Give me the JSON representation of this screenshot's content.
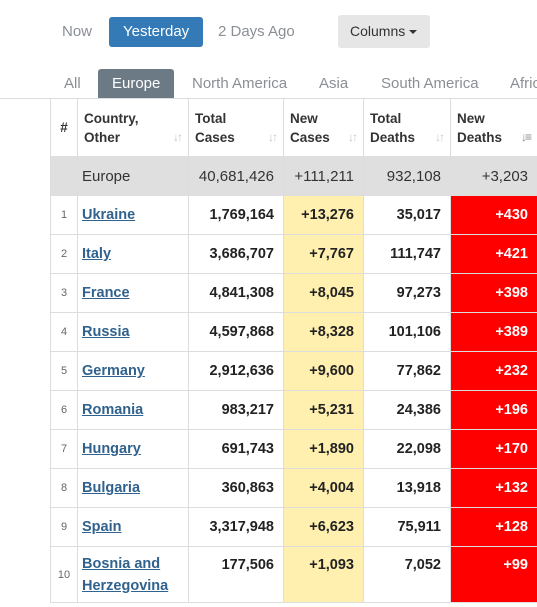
{
  "day_tabs": [
    "Now",
    "Yesterday",
    "2 Days Ago"
  ],
  "columns_button": "Columns",
  "region_tabs": [
    "All",
    "Europe",
    "North America",
    "Asia",
    "South America",
    "Afric"
  ],
  "headers": {
    "hash": "#",
    "country": [
      "Country,",
      "Other"
    ],
    "total_cases": [
      "Total",
      "Cases"
    ],
    "new_cases": [
      "New",
      "Cases"
    ],
    "total_deaths": [
      "Total",
      "Deaths"
    ],
    "new_deaths": [
      "New",
      "Deaths"
    ]
  },
  "total_row": {
    "name": "Europe",
    "total_cases": "40,681,426",
    "new_cases": "+111,211",
    "total_deaths": "932,108",
    "new_deaths": "+3,203"
  },
  "rows": [
    {
      "idx": "1",
      "country": [
        "Ukraine"
      ],
      "total_cases": "1,769,164",
      "new_cases": "+13,276",
      "total_deaths": "35,017",
      "new_deaths": "+430"
    },
    {
      "idx": "2",
      "country": [
        "Italy"
      ],
      "total_cases": "3,686,707",
      "new_cases": "+7,767",
      "total_deaths": "111,747",
      "new_deaths": "+421"
    },
    {
      "idx": "3",
      "country": [
        "France"
      ],
      "total_cases": "4,841,308",
      "new_cases": "+8,045",
      "total_deaths": "97,273",
      "new_deaths": "+398"
    },
    {
      "idx": "4",
      "country": [
        "Russia"
      ],
      "total_cases": "4,597,868",
      "new_cases": "+8,328",
      "total_deaths": "101,106",
      "new_deaths": "+389"
    },
    {
      "idx": "5",
      "country": [
        "Germany"
      ],
      "total_cases": "2,912,636",
      "new_cases": "+9,600",
      "total_deaths": "77,862",
      "new_deaths": "+232"
    },
    {
      "idx": "6",
      "country": [
        "Romania"
      ],
      "total_cases": "983,217",
      "new_cases": "+5,231",
      "total_deaths": "24,386",
      "new_deaths": "+196"
    },
    {
      "idx": "7",
      "country": [
        "Hungary"
      ],
      "total_cases": "691,743",
      "new_cases": "+1,890",
      "total_deaths": "22,098",
      "new_deaths": "+170"
    },
    {
      "idx": "8",
      "country": [
        "Bulgaria"
      ],
      "total_cases": "360,863",
      "new_cases": "+4,004",
      "total_deaths": "13,918",
      "new_deaths": "+132"
    },
    {
      "idx": "9",
      "country": [
        "Spain"
      ],
      "total_cases": "3,317,948",
      "new_cases": "+6,623",
      "total_deaths": "75,911",
      "new_deaths": "+128"
    },
    {
      "idx": "10",
      "country": [
        "Bosnia and",
        "Herzegovina"
      ],
      "total_cases": "177,506",
      "new_cases": "+1,093",
      "total_deaths": "7,052",
      "new_deaths": "+99"
    }
  ],
  "icons": {
    "sort": "sort-arrows-icon",
    "sort_active": "sort-descending-icon",
    "caret": "caret-down-icon"
  },
  "colors": {
    "active_tab": "#337ab7",
    "region_active": "#6c7a86",
    "new_cases_bg": "#fff0b0",
    "new_deaths_bg": "#ff0000",
    "link": "#30628d"
  }
}
